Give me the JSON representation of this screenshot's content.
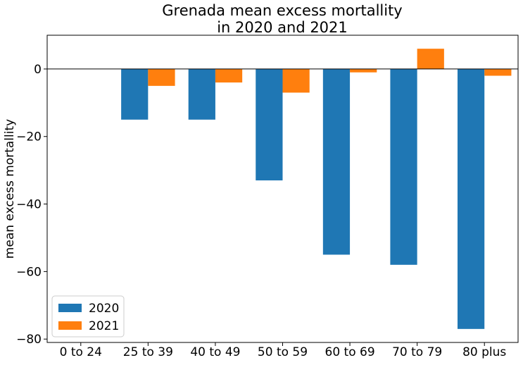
{
  "chart_data": {
    "type": "bar",
    "title_line1": "Grenada mean excess mortallity",
    "title_line2": "in 2020 and 2021",
    "xlabel": "",
    "ylabel": "mean excess mortallity",
    "categories": [
      "0 to 24",
      "25 to 39",
      "40 to 49",
      "50 to 59",
      "60 to 69",
      "70 to 79",
      "80 plus"
    ],
    "series": [
      {
        "name": "2020",
        "color": "#1f77b4",
        "values": [
          0,
          -15,
          -15,
          -33,
          -55,
          -58,
          -77
        ]
      },
      {
        "name": "2021",
        "color": "#ff7f0e",
        "values": [
          0,
          -5,
          -4,
          -7,
          -1,
          6,
          -2
        ]
      }
    ],
    "ylim": [
      -81,
      10
    ],
    "yticks": [
      0,
      -20,
      -40,
      -60,
      -80
    ],
    "ytick_labels": [
      "0",
      "−20",
      "−40",
      "−60",
      "−80"
    ],
    "zero_line": true,
    "grid": false,
    "legend_position": "lower-left"
  }
}
